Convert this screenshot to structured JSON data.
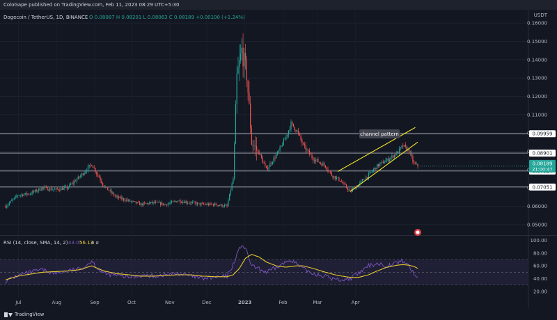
{
  "header": {
    "published_by": "ColoGape published on TradingView.com, Feb 11, 2023 08:29 UTC+5:30"
  },
  "legend": {
    "symbol": "Dogecoin / TetherUS, 1D, BINANCE",
    "ohlc": "O 0.08087  H 0.08201  L 0.08063  C 0.08189  +0.00100 (+1.24%)"
  },
  "rsi_legend": {
    "label": "RSI (14, close, SMA, 14, 2)",
    "rsi_value": "43.05",
    "sma_value": "56.13",
    "phi": "ø ø"
  },
  "footer": {
    "brand": "TradingView"
  },
  "annotation": {
    "text": "channel pattern"
  },
  "price_axis": {
    "unit": "USDT",
    "ticks": [
      "0.16000",
      "0.15000",
      "0.14000",
      "0.13000",
      "0.12000",
      "0.11000",
      "0.10000",
      "0.09000",
      "0.08000",
      "0.07000",
      "0.06000",
      "0.05000"
    ],
    "levels": [
      {
        "value": 0.09959,
        "label": "0.09959"
      },
      {
        "value": 0.08901,
        "label": "0.08901"
      },
      {
        "value": 0.07924,
        "label": "0.07924"
      },
      {
        "value": 0.07051,
        "label": "0.07051"
      }
    ],
    "current_price": "0.08189",
    "countdown": "21:00:47"
  },
  "rsi_axis": {
    "ticks": [
      "100.00",
      "80.00",
      "60.00",
      "40.00",
      "20.00"
    ]
  },
  "time_axis": {
    "labels": [
      "Jul",
      "Aug",
      "Sep",
      "Oct",
      "Nov",
      "Dec",
      "2023",
      "Feb",
      "Mar",
      "Apr"
    ]
  },
  "colors": {
    "up": "#26a69a",
    "down": "#ef5350",
    "rsi": "#7e57c2",
    "rsi_sma": "#e8c930",
    "channel": "#f5e62c",
    "level_line": "#b2b5be",
    "price_tag": "#26a69a"
  },
  "chart_data": [
    {
      "type": "candlestick",
      "title": "Dogecoin / TetherUS, 1D, BINANCE",
      "ylabel": "USDT",
      "ylim": [
        0.045,
        0.165
      ],
      "x_ticks": [
        "Jul",
        "Aug",
        "Sep",
        "Oct",
        "Nov",
        "Dec",
        "2023",
        "Feb",
        "Mar",
        "Apr"
      ],
      "path_close": [
        [
          0,
          0.06
        ],
        [
          10,
          0.066
        ],
        [
          20,
          0.067
        ],
        [
          30,
          0.07
        ],
        [
          40,
          0.069
        ],
        [
          50,
          0.07
        ],
        [
          60,
          0.076
        ],
        [
          70,
          0.083
        ],
        [
          80,
          0.071
        ],
        [
          90,
          0.065
        ],
        [
          100,
          0.063
        ],
        [
          110,
          0.061
        ],
        [
          120,
          0.062
        ],
        [
          130,
          0.061
        ],
        [
          140,
          0.063
        ],
        [
          150,
          0.062
        ],
        [
          160,
          0.061
        ],
        [
          170,
          0.061
        ],
        [
          180,
          0.06
        ],
        [
          185,
          0.075
        ],
        [
          188,
          0.13
        ],
        [
          192,
          0.145
        ],
        [
          196,
          0.132
        ],
        [
          200,
          0.095
        ],
        [
          206,
          0.089
        ],
        [
          212,
          0.08
        ],
        [
          222,
          0.09
        ],
        [
          228,
          0.098
        ],
        [
          232,
          0.105
        ],
        [
          237,
          0.101
        ],
        [
          242,
          0.093
        ],
        [
          250,
          0.086
        ],
        [
          260,
          0.082
        ],
        [
          265,
          0.077
        ],
        [
          272,
          0.074
        ],
        [
          280,
          0.068
        ],
        [
          287,
          0.072
        ],
        [
          295,
          0.077
        ],
        [
          302,
          0.082
        ],
        [
          312,
          0.086
        ],
        [
          318,
          0.089
        ],
        [
          323,
          0.093
        ],
        [
          328,
          0.09
        ],
        [
          332,
          0.083
        ],
        [
          335,
          0.082
        ]
      ],
      "levels": [
        0.09959,
        0.08901,
        0.07924,
        0.07051
      ],
      "channel": {
        "upper": [
          [
            270,
            0.079
          ],
          [
            333,
            0.103
          ]
        ],
        "lower": [
          [
            280,
            0.068
          ],
          [
            335,
            0.095
          ]
        ]
      },
      "last_close": 0.08189
    },
    {
      "type": "line",
      "title": "RSI (14, close, SMA, 14, 2)",
      "ylim": [
        10,
        105
      ],
      "y_ticks": [
        100,
        80,
        60,
        40,
        20
      ],
      "band": [
        30,
        70
      ],
      "series": [
        {
          "name": "RSI",
          "values": [
            [
              0,
              36
            ],
            [
              10,
              45
            ],
            [
              20,
              50
            ],
            [
              30,
              54
            ],
            [
              40,
              48
            ],
            [
              50,
              52
            ],
            [
              60,
              55
            ],
            [
              65,
              60
            ],
            [
              70,
              68
            ],
            [
              75,
              56
            ],
            [
              80,
              48
            ],
            [
              90,
              45
            ],
            [
              100,
              42
            ],
            [
              110,
              45
            ],
            [
              120,
              44
            ],
            [
              130,
              46
            ],
            [
              140,
              48
            ],
            [
              150,
              44
            ],
            [
              160,
              40
            ],
            [
              170,
              42
            ],
            [
              180,
              44
            ],
            [
              185,
              62
            ],
            [
              188,
              78
            ],
            [
              192,
              94
            ],
            [
              196,
              82
            ],
            [
              200,
              60
            ],
            [
              206,
              55
            ],
            [
              212,
              50
            ],
            [
              220,
              57
            ],
            [
              228,
              66
            ],
            [
              232,
              70
            ],
            [
              237,
              62
            ],
            [
              242,
              55
            ],
            [
              250,
              48
            ],
            [
              260,
              44
            ],
            [
              265,
              40
            ],
            [
              272,
              38
            ],
            [
              280,
              40
            ],
            [
              287,
              48
            ],
            [
              295,
              60
            ],
            [
              302,
              64
            ],
            [
              310,
              60
            ],
            [
              318,
              65
            ],
            [
              323,
              68
            ],
            [
              328,
              60
            ],
            [
              332,
              46
            ],
            [
              335,
              43.05
            ]
          ]
        },
        {
          "name": "SMA",
          "values": [
            [
              0,
              38
            ],
            [
              10,
              44
            ],
            [
              20,
              47
            ],
            [
              30,
              50
            ],
            [
              40,
              51
            ],
            [
              50,
              52
            ],
            [
              60,
              54
            ],
            [
              70,
              60
            ],
            [
              80,
              52
            ],
            [
              90,
              48
            ],
            [
              100,
              46
            ],
            [
              110,
              44
            ],
            [
              120,
              44
            ],
            [
              130,
              45
            ],
            [
              140,
              46
            ],
            [
              150,
              46
            ],
            [
              160,
              44
            ],
            [
              170,
              43
            ],
            [
              180,
              43
            ],
            [
              185,
              46
            ],
            [
              190,
              56
            ],
            [
              195,
              72
            ],
            [
              200,
              78
            ],
            [
              206,
              74
            ],
            [
              212,
              66
            ],
            [
              220,
              60
            ],
            [
              228,
              58
            ],
            [
              236,
              60
            ],
            [
              242,
              60
            ],
            [
              250,
              56
            ],
            [
              260,
              50
            ],
            [
              270,
              45
            ],
            [
              280,
              42
            ],
            [
              287,
              42
            ],
            [
              295,
              46
            ],
            [
              302,
              52
            ],
            [
              310,
              58
            ],
            [
              318,
              61
            ],
            [
              323,
              62
            ],
            [
              328,
              61
            ],
            [
              332,
              59
            ],
            [
              335,
              56.13
            ]
          ]
        }
      ]
    }
  ]
}
